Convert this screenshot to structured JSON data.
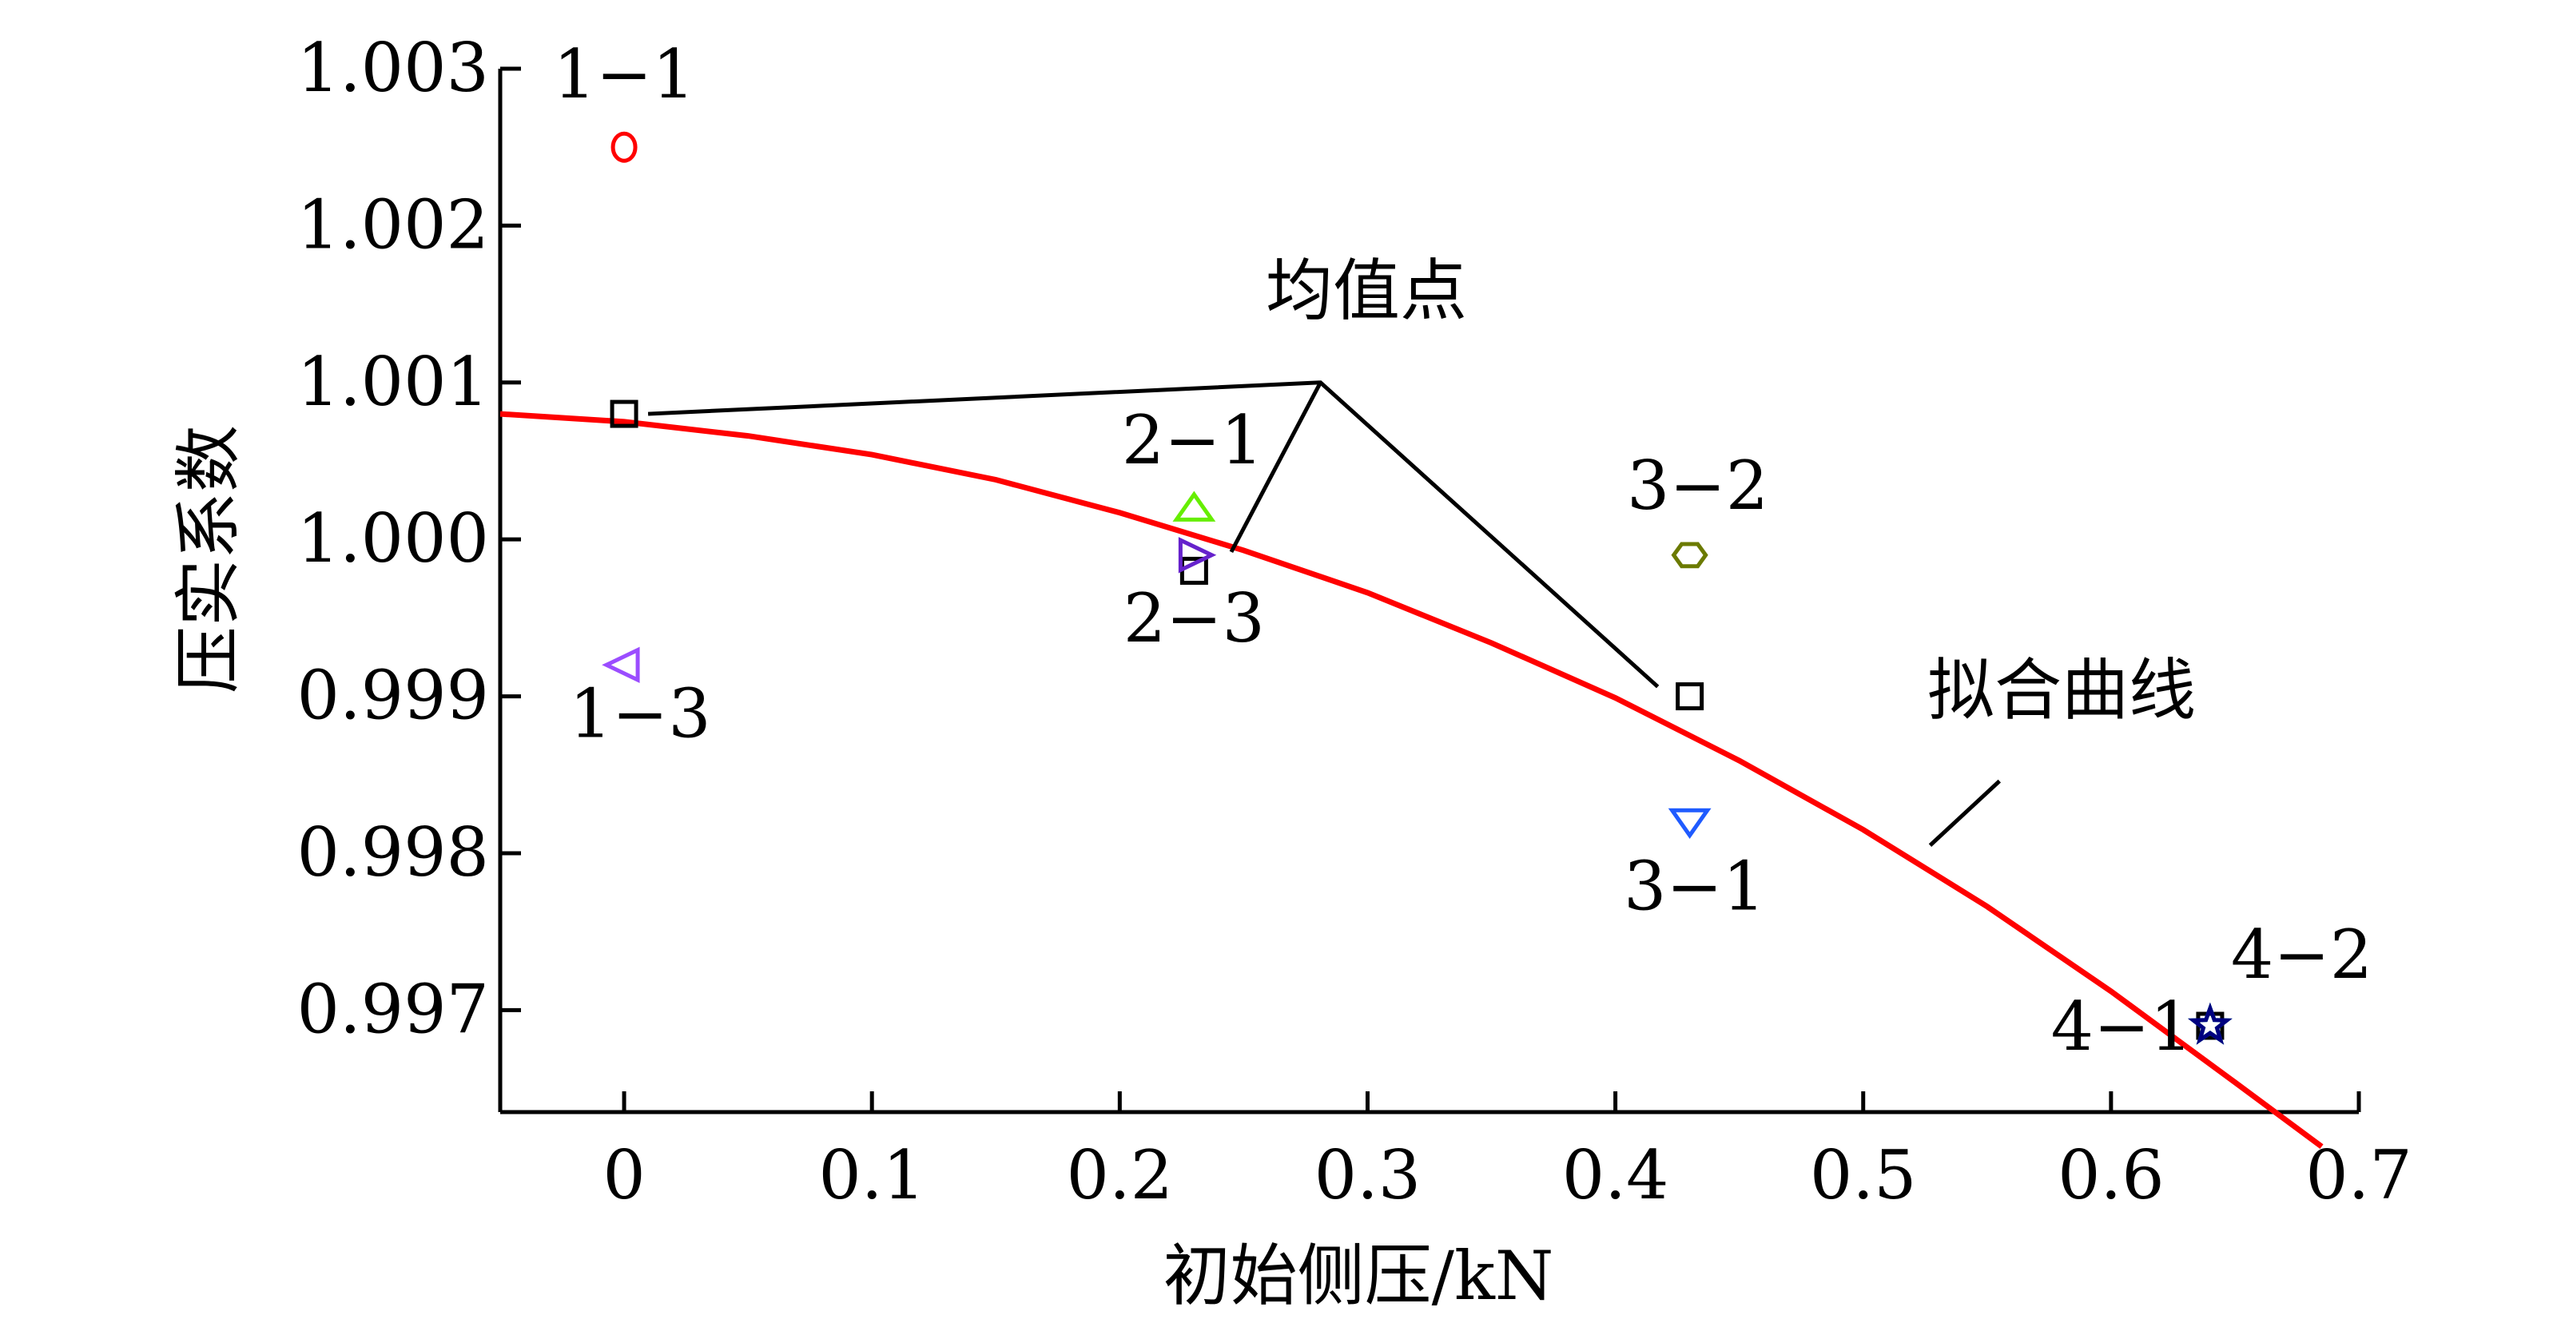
{
  "chart_data": {
    "type": "scatter",
    "xlabel": "初始侧压/kN",
    "ylabel": "压实系数",
    "xlim": [
      -0.05,
      0.7
    ],
    "ylim": [
      0.99635,
      1.003
    ],
    "x_ticks": [
      0,
      0.1,
      0.2,
      0.3,
      0.4,
      0.5,
      0.6,
      0.7
    ],
    "x_tick_labels": [
      "0",
      "0.1",
      "0.2",
      "0.3",
      "0.4",
      "0.5",
      "0.6",
      "0.7"
    ],
    "y_ticks": [
      0.997,
      0.998,
      0.999,
      1.0,
      1.001,
      1.002,
      1.003
    ],
    "y_tick_labels": [
      "0.997",
      "0.998",
      "0.999",
      "1.000",
      "1.001",
      "1.002",
      "1.003"
    ],
    "grid": false,
    "series": [
      {
        "name": "1−1",
        "marker": "circle",
        "color": "#ff0000",
        "x": 0,
        "y": 1.0025
      },
      {
        "name": "1−3",
        "marker": "triangle-left",
        "color": "#9b4dff",
        "x": 0,
        "y": 0.9992
      },
      {
        "name": "2−1",
        "marker": "triangle-up",
        "color": "#66ee00",
        "x": 0.23,
        "y": 1.0002
      },
      {
        "name": "2−3",
        "marker": "triangle-right",
        "color": "#6622cc",
        "x": 0.23,
        "y": 0.9999
      },
      {
        "name": "3−1",
        "marker": "triangle-down",
        "color": "#1f5bff",
        "x": 0.43,
        "y": 0.9982
      },
      {
        "name": "3−2",
        "marker": "hexagon",
        "color": "#6b7a00",
        "x": 0.43,
        "y": 0.9999
      },
      {
        "name": "4−1",
        "marker": "star",
        "color": "#00aaaa",
        "x": 0.64,
        "y": 0.9969
      },
      {
        "name": "4−2",
        "marker": "star",
        "color": "#000080",
        "x": 0.64,
        "y": 0.9969
      }
    ],
    "mean_points": {
      "marker": "square",
      "color": "#000000",
      "points": [
        {
          "x": 0,
          "y": 1.0008
        },
        {
          "x": 0.23,
          "y": 0.9998
        },
        {
          "x": 0.43,
          "y": 0.999
        },
        {
          "x": 0.64,
          "y": 0.9969
        }
      ]
    },
    "fit_curve": {
      "color": "#ff0000",
      "x": [
        -0.05,
        0,
        0.05,
        0.1,
        0.15,
        0.2,
        0.25,
        0.3,
        0.35,
        0.4,
        0.45,
        0.5,
        0.55,
        0.6,
        0.65,
        0.685
      ],
      "y": [
        1.0008,
        1.00075,
        1.00066,
        1.00054,
        1.00038,
        1.00017,
        0.99993,
        0.99966,
        0.99934,
        0.99899,
        0.99859,
        0.99815,
        0.99766,
        0.99712,
        0.99654,
        0.99613
      ]
    },
    "annotations": {
      "mean_label": "均值点",
      "fit_label": "拟合曲线"
    }
  }
}
